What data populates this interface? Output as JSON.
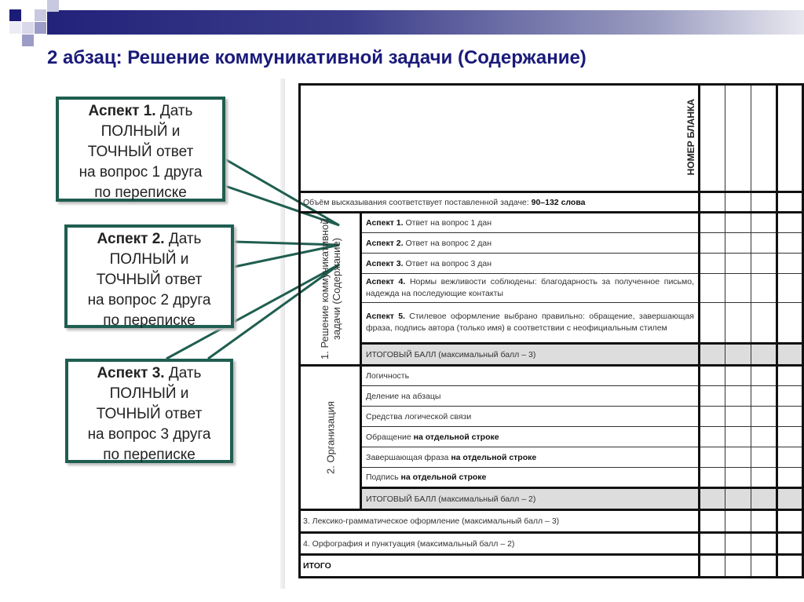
{
  "slide": {
    "title": "2 абзац:  Решение коммуникативной задачи (Содержание)"
  },
  "callouts": [
    {
      "bold": "Аспект 1.",
      "text": " Дать",
      "lines": [
        "ПОЛНЫЙ и",
        "ТОЧНЫЙ ответ",
        "на вопрос 1 друга",
        "по переписке"
      ]
    },
    {
      "bold": "Аспект 2.",
      "text": " Дать",
      "lines": [
        "ПОЛНЫЙ и",
        "ТОЧНЫЙ ответ",
        "на вопрос 2 друга",
        "по переписке"
      ]
    },
    {
      "bold": "Аспект 3.",
      "text": " Дать",
      "lines": [
        "ПОЛНЫЙ и",
        "ТОЧНЫЙ ответ",
        "на вопрос 3 друга",
        "по переписке"
      ]
    }
  ],
  "table": {
    "header": "НОМЕР БЛАНКА",
    "volume": {
      "text": "Объём высказывания соответствует поставленной задаче: ",
      "bold": "90–132 слова"
    },
    "section1": {
      "label": "1.  Решение  коммуникативной задачи (Содержание)",
      "rows": [
        {
          "bold": "Аспект 1.",
          "text": " Ответ на вопрос 1 дан"
        },
        {
          "bold": "Аспект 2.",
          "text": " Ответ на вопрос 2 дан"
        },
        {
          "bold": "Аспект 3.",
          "text": " Ответ на вопрос 3 дан"
        },
        {
          "bold": "Аспект 4.",
          "text": " Нормы вежливости соблюдены: благодарность за полученное письмо, надежда на последующие контакты"
        },
        {
          "bold": "Аспект 5.",
          "text": " Стилевое оформление выбрано правильно: обращение, завершающая фраза, подпись автора (только имя) в соответствии с неофициальным стилем"
        }
      ],
      "total": "ИТОГОВЫЙ БАЛЛ (максимальный балл – 3)"
    },
    "section2": {
      "label": "2. Организация",
      "rows": [
        {
          "text": "Логичность",
          "bold": ""
        },
        {
          "text": "Деление на абзацы",
          "bold": ""
        },
        {
          "text": "Средства логической связи",
          "bold": ""
        },
        {
          "text": "Обращение ",
          "bold": "на отдельной строке"
        },
        {
          "text": "Завершающая фраза ",
          "bold": "на отдельной строке"
        },
        {
          "text": "Подпись ",
          "bold": "на отдельной строке"
        }
      ],
      "total": "ИТОГОВЫЙ БАЛЛ (максимальный балл – 2)"
    },
    "row3": "3. Лексико-грамматическое оформление (максимальный балл – 3)",
    "row4": "4. Орфография и пунктуация (максимальный балл – 2)",
    "itogo": "ИТОГО"
  },
  "colors": {
    "title": "#1a1a7a",
    "callout_border": "#1f5e50",
    "total_row": "#dddddd"
  }
}
